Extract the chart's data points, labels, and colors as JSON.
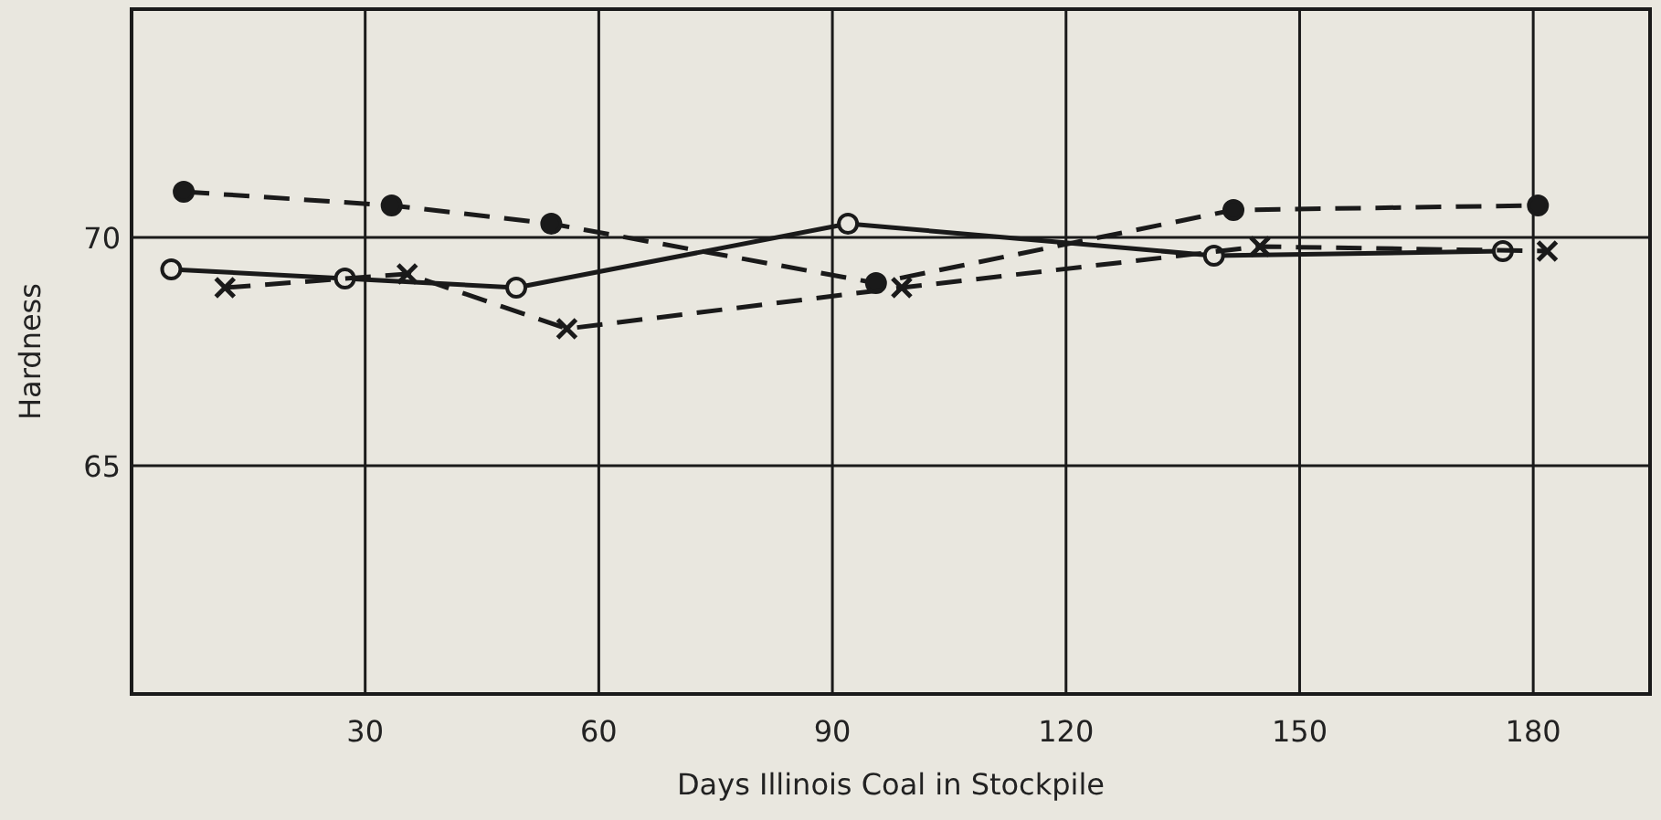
{
  "chart_data": {
    "type": "line",
    "xlabel": "Days Illinois Coal in Stockpile",
    "ylabel": "Hardness",
    "xlim": [
      0,
      195
    ],
    "xticks": [
      30,
      60,
      90,
      120,
      150,
      180
    ],
    "ylim": [
      60,
      75
    ],
    "yticks": [
      65,
      70
    ],
    "grid": true,
    "series": [
      {
        "color": "#1a1a1a",
        "marker": "circle",
        "line_style": "dashed",
        "x": [
          6.7,
          33.4,
          53.9,
          95.6,
          141.5,
          180.6
        ],
        "values": [
          71.0,
          70.7,
          70.3,
          69.0,
          70.6,
          70.7
        ]
      },
      {
        "color": "#1a1a1a",
        "marker": "circle",
        "colors": [
          "#e9e7df",
          "#e9e7df",
          "#e9e7df",
          "#e9e7df",
          "#e9e7df",
          "#e9e7df"
        ],
        "line_style": "solid",
        "x": [
          5.1,
          27.4,
          49.4,
          92.0,
          139.0,
          176.1
        ],
        "values": [
          69.3,
          69.1,
          68.9,
          70.3,
          69.6,
          69.7
        ]
      },
      {
        "color": "#1a1a1a",
        "marker": "cross",
        "line_style": "dashed",
        "x": [
          12.0,
          35.4,
          55.9,
          98.9,
          144.9,
          181.8
        ],
        "values": [
          68.9,
          69.2,
          68.0,
          68.9,
          69.8,
          69.7
        ]
      }
    ]
  }
}
